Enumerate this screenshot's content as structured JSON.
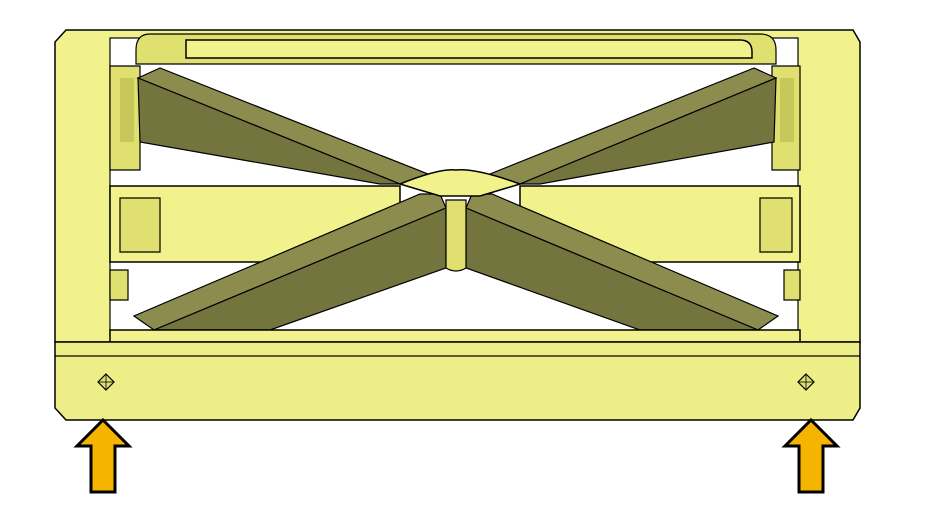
{
  "figure": {
    "colors": {
      "part_light": "#f2f28c",
      "part_face": "#eeee88",
      "part_mid": "#e0e070",
      "part_shadow": "#c8c85a",
      "rib_face": "#8c8c4e",
      "rib_dark": "#74743e",
      "outline": "#000000",
      "arrow_fill": "#f5b400",
      "background": "#ffffff"
    },
    "icons": [
      "datum-marker-icon",
      "arrow-up-icon"
    ]
  }
}
